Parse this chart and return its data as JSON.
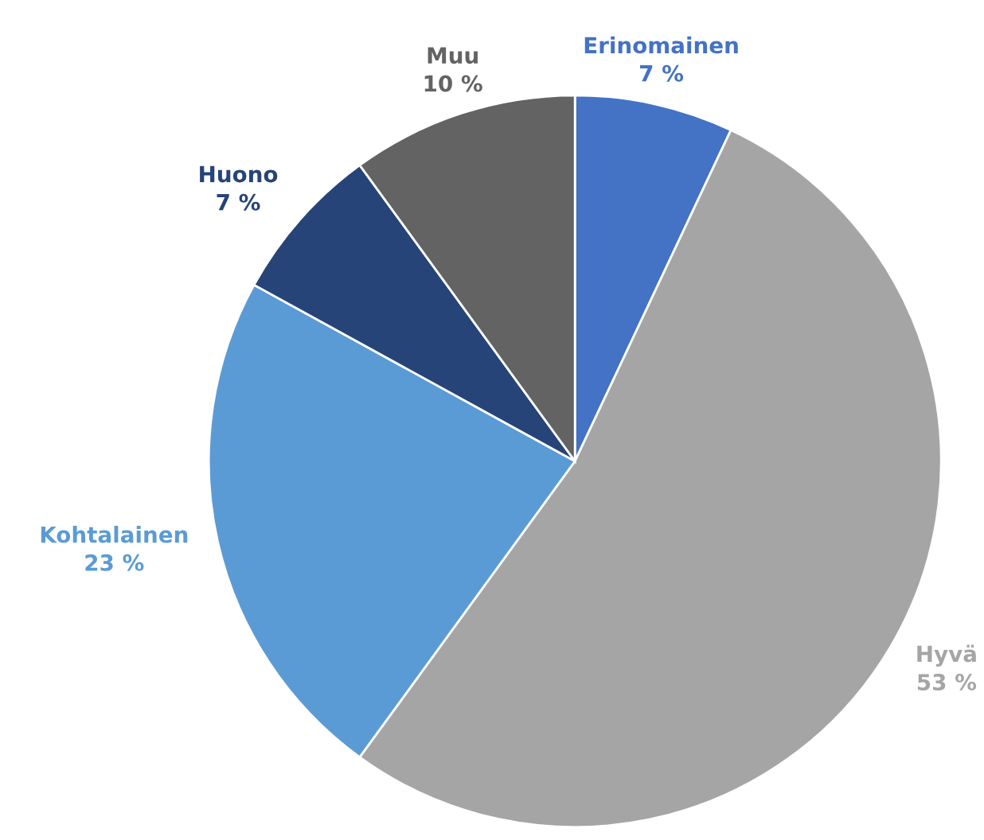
{
  "chart_data": {
    "type": "pie",
    "categories": [
      "Erinomainen",
      "Hyvä",
      "Kohtalainen",
      "Huono",
      "Muu"
    ],
    "values": [
      7,
      53,
      23,
      7,
      10
    ],
    "value_labels": [
      "7 %",
      "53 %",
      "23 %",
      "7 %",
      "10 %"
    ],
    "colors": [
      "#4472c4",
      "#a5a5a5",
      "#5b9bd5",
      "#264478",
      "#636363"
    ],
    "legend": false
  }
}
